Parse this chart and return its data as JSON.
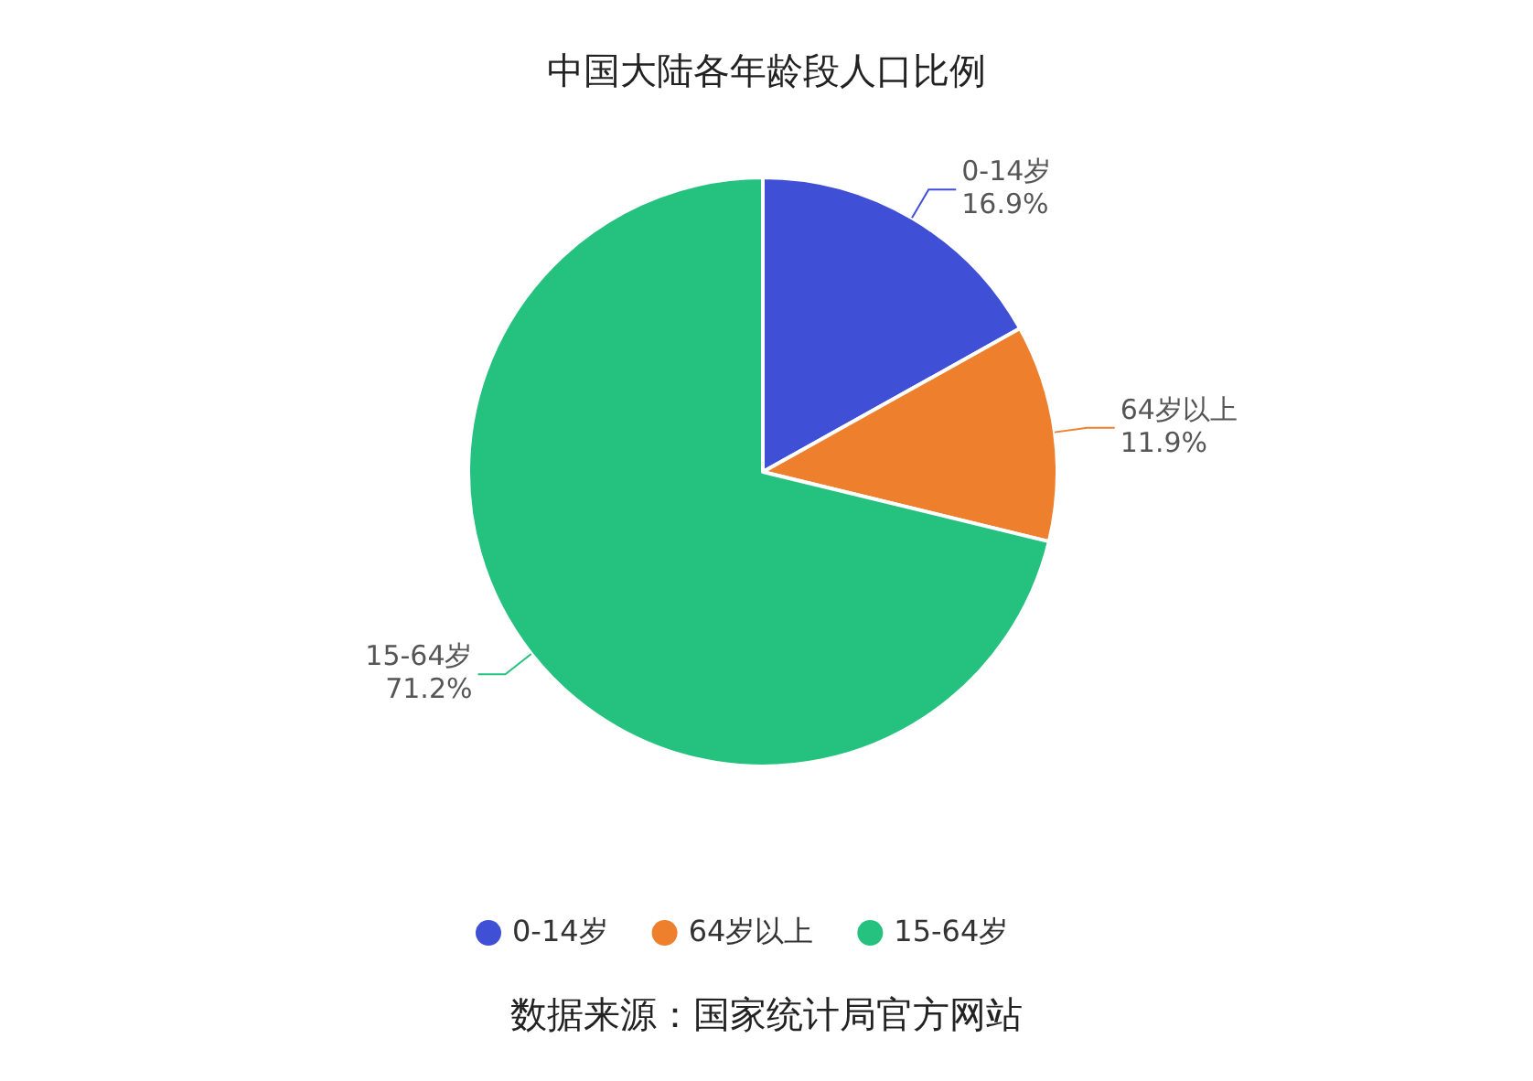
{
  "chart_data": {
    "type": "pie",
    "title": "中国大陆各年龄段人口比例",
    "categories": [
      "0-14岁",
      "64岁以上",
      "15-64岁"
    ],
    "values": [
      16.9,
      11.9,
      71.2
    ],
    "colors": [
      "#3f4fd6",
      "#ee7f2d",
      "#25c27f"
    ],
    "value_labels": [
      "16.9%",
      "11.9%",
      "71.2%"
    ],
    "legend": "bottom",
    "annotations": [
      "数据来源：国家统计局官方网站"
    ]
  }
}
